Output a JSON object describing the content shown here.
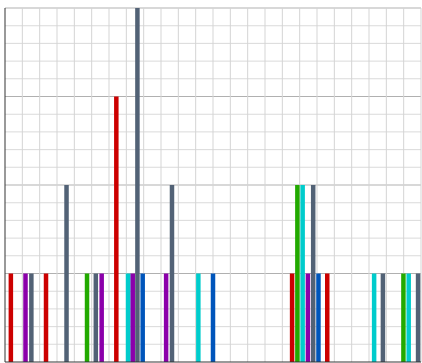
{
  "chart_data": {
    "type": "bar",
    "title": "",
    "xlabel": "",
    "ylabel": "",
    "ylim": [
      0,
      4
    ],
    "xlim": [
      0,
      71
    ],
    "grid": true,
    "legend": "none",
    "bars": [
      {
        "x": 1,
        "value": 1,
        "color": "#cc0000"
      },
      {
        "x": 3.5,
        "value": 1,
        "color": "#8b00aa"
      },
      {
        "x": 4.5,
        "value": 1,
        "color": "#526276"
      },
      {
        "x": 7,
        "value": 1,
        "color": "#cc0000"
      },
      {
        "x": 10.5,
        "value": 2,
        "color": "#526276"
      },
      {
        "x": 14,
        "value": 1,
        "color": "#22aa00"
      },
      {
        "x": 15.5,
        "value": 1,
        "color": "#526276"
      },
      {
        "x": 16.5,
        "value": 1,
        "color": "#8b00aa"
      },
      {
        "x": 19,
        "value": 3,
        "color": "#cc0000"
      },
      {
        "x": 21,
        "value": 1,
        "color": "#00cccc"
      },
      {
        "x": 21.8,
        "value": 1,
        "color": "#8b00aa"
      },
      {
        "x": 22.6,
        "value": 4,
        "color": "#526276"
      },
      {
        "x": 23.5,
        "value": 1,
        "color": "#0055bb"
      },
      {
        "x": 27.5,
        "value": 1,
        "color": "#8b00aa"
      },
      {
        "x": 28.5,
        "value": 2,
        "color": "#526276"
      },
      {
        "x": 33,
        "value": 1,
        "color": "#00cccc"
      },
      {
        "x": 35.5,
        "value": 1,
        "color": "#0055bb"
      },
      {
        "x": 49,
        "value": 1,
        "color": "#cc0000"
      },
      {
        "x": 49.9,
        "value": 2,
        "color": "#22aa00"
      },
      {
        "x": 50.8,
        "value": 2,
        "color": "#00cccc"
      },
      {
        "x": 51.7,
        "value": 1,
        "color": "#8b00aa"
      },
      {
        "x": 52.6,
        "value": 2,
        "color": "#526276"
      },
      {
        "x": 53.5,
        "value": 1,
        "color": "#0055bb"
      },
      {
        "x": 55,
        "value": 1,
        "color": "#cc0000"
      },
      {
        "x": 63,
        "value": 1,
        "color": "#00cccc"
      },
      {
        "x": 64.5,
        "value": 1,
        "color": "#526276"
      },
      {
        "x": 68,
        "value": 1,
        "color": "#22aa00"
      },
      {
        "x": 68.9,
        "value": 1,
        "color": "#00cccc"
      },
      {
        "x": 70.5,
        "value": 1,
        "color": "#526276"
      }
    ]
  }
}
